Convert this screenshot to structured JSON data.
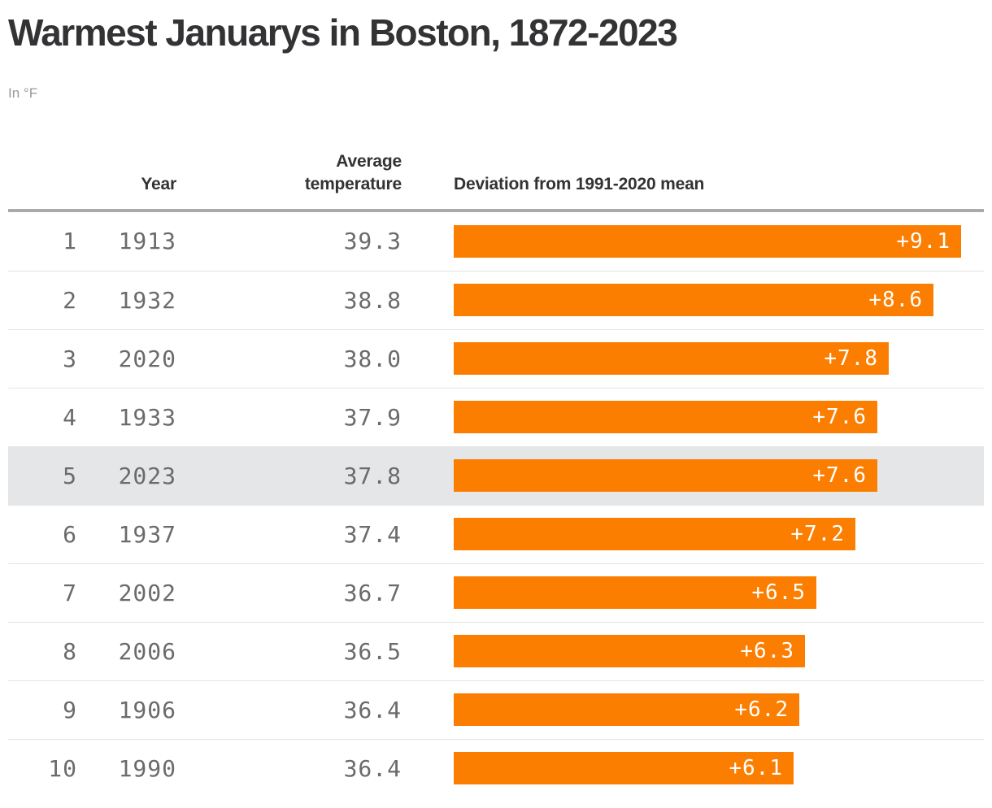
{
  "header": {
    "title": "Warmest Januarys in Boston, 1872-2023",
    "subtitle": "In °F"
  },
  "table": {
    "columns": {
      "year": "Year",
      "temp_line1": "Average",
      "temp_line2": "temperature",
      "deviation": "Deviation from 1991-2020 mean"
    },
    "rows": [
      {
        "rank": "1",
        "year": "1913",
        "temp": "39.3",
        "dev": 9.1,
        "dev_label": "+9.1",
        "highlight": false
      },
      {
        "rank": "2",
        "year": "1932",
        "temp": "38.8",
        "dev": 8.6,
        "dev_label": "+8.6",
        "highlight": false
      },
      {
        "rank": "3",
        "year": "2020",
        "temp": "38.0",
        "dev": 7.8,
        "dev_label": "+7.8",
        "highlight": false
      },
      {
        "rank": "4",
        "year": "1933",
        "temp": "37.9",
        "dev": 7.6,
        "dev_label": "+7.6",
        "highlight": false
      },
      {
        "rank": "5",
        "year": "2023",
        "temp": "37.8",
        "dev": 7.6,
        "dev_label": "+7.6",
        "highlight": true
      },
      {
        "rank": "6",
        "year": "1937",
        "temp": "37.4",
        "dev": 7.2,
        "dev_label": "+7.2",
        "highlight": false
      },
      {
        "rank": "7",
        "year": "2002",
        "temp": "36.7",
        "dev": 6.5,
        "dev_label": "+6.5",
        "highlight": false
      },
      {
        "rank": "8",
        "year": "2006",
        "temp": "36.5",
        "dev": 6.3,
        "dev_label": "+6.3",
        "highlight": false
      },
      {
        "rank": "9",
        "year": "1906",
        "temp": "36.4",
        "dev": 6.2,
        "dev_label": "+6.2",
        "highlight": false
      },
      {
        "rank": "10",
        "year": "1990",
        "temp": "36.4",
        "dev": 6.1,
        "dev_label": "+6.1",
        "highlight": false
      }
    ]
  },
  "chart_data": {
    "type": "bar",
    "orientation": "horizontal",
    "title": "Warmest Januarys in Boston, 1872-2023",
    "subtitle": "In °F",
    "ranks": [
      1,
      2,
      3,
      4,
      5,
      6,
      7,
      8,
      9,
      10
    ],
    "categories": [
      "1913",
      "1932",
      "2020",
      "1933",
      "2023",
      "1937",
      "2002",
      "2006",
      "1906",
      "1990"
    ],
    "series": [
      {
        "name": "Average temperature",
        "values": [
          39.3,
          38.8,
          38.0,
          37.9,
          37.8,
          37.4,
          36.7,
          36.5,
          36.4,
          36.4
        ]
      },
      {
        "name": "Deviation from 1991-2020 mean",
        "values": [
          9.1,
          8.6,
          7.8,
          7.6,
          7.6,
          7.2,
          6.5,
          6.3,
          6.2,
          6.1
        ]
      }
    ],
    "bar_labels": [
      "+9.1",
      "+8.6",
      "+7.8",
      "+7.6",
      "+7.6",
      "+7.2",
      "+6.5",
      "+6.3",
      "+6.2",
      "+6.1"
    ],
    "xlim": [
      0,
      9.1
    ],
    "grid": false,
    "legend_position": "none",
    "highlighted_category": "2023"
  },
  "colors": {
    "bar": "#fb7e00",
    "bar_label": "#ffffff",
    "row_highlight": "#e5e6e8",
    "value_text": "#6b6b6b",
    "heading_text": "#333335",
    "subtitle_text": "#97999b",
    "header_rule": "#a9aaab",
    "row_rule": "#e4e4e4"
  }
}
